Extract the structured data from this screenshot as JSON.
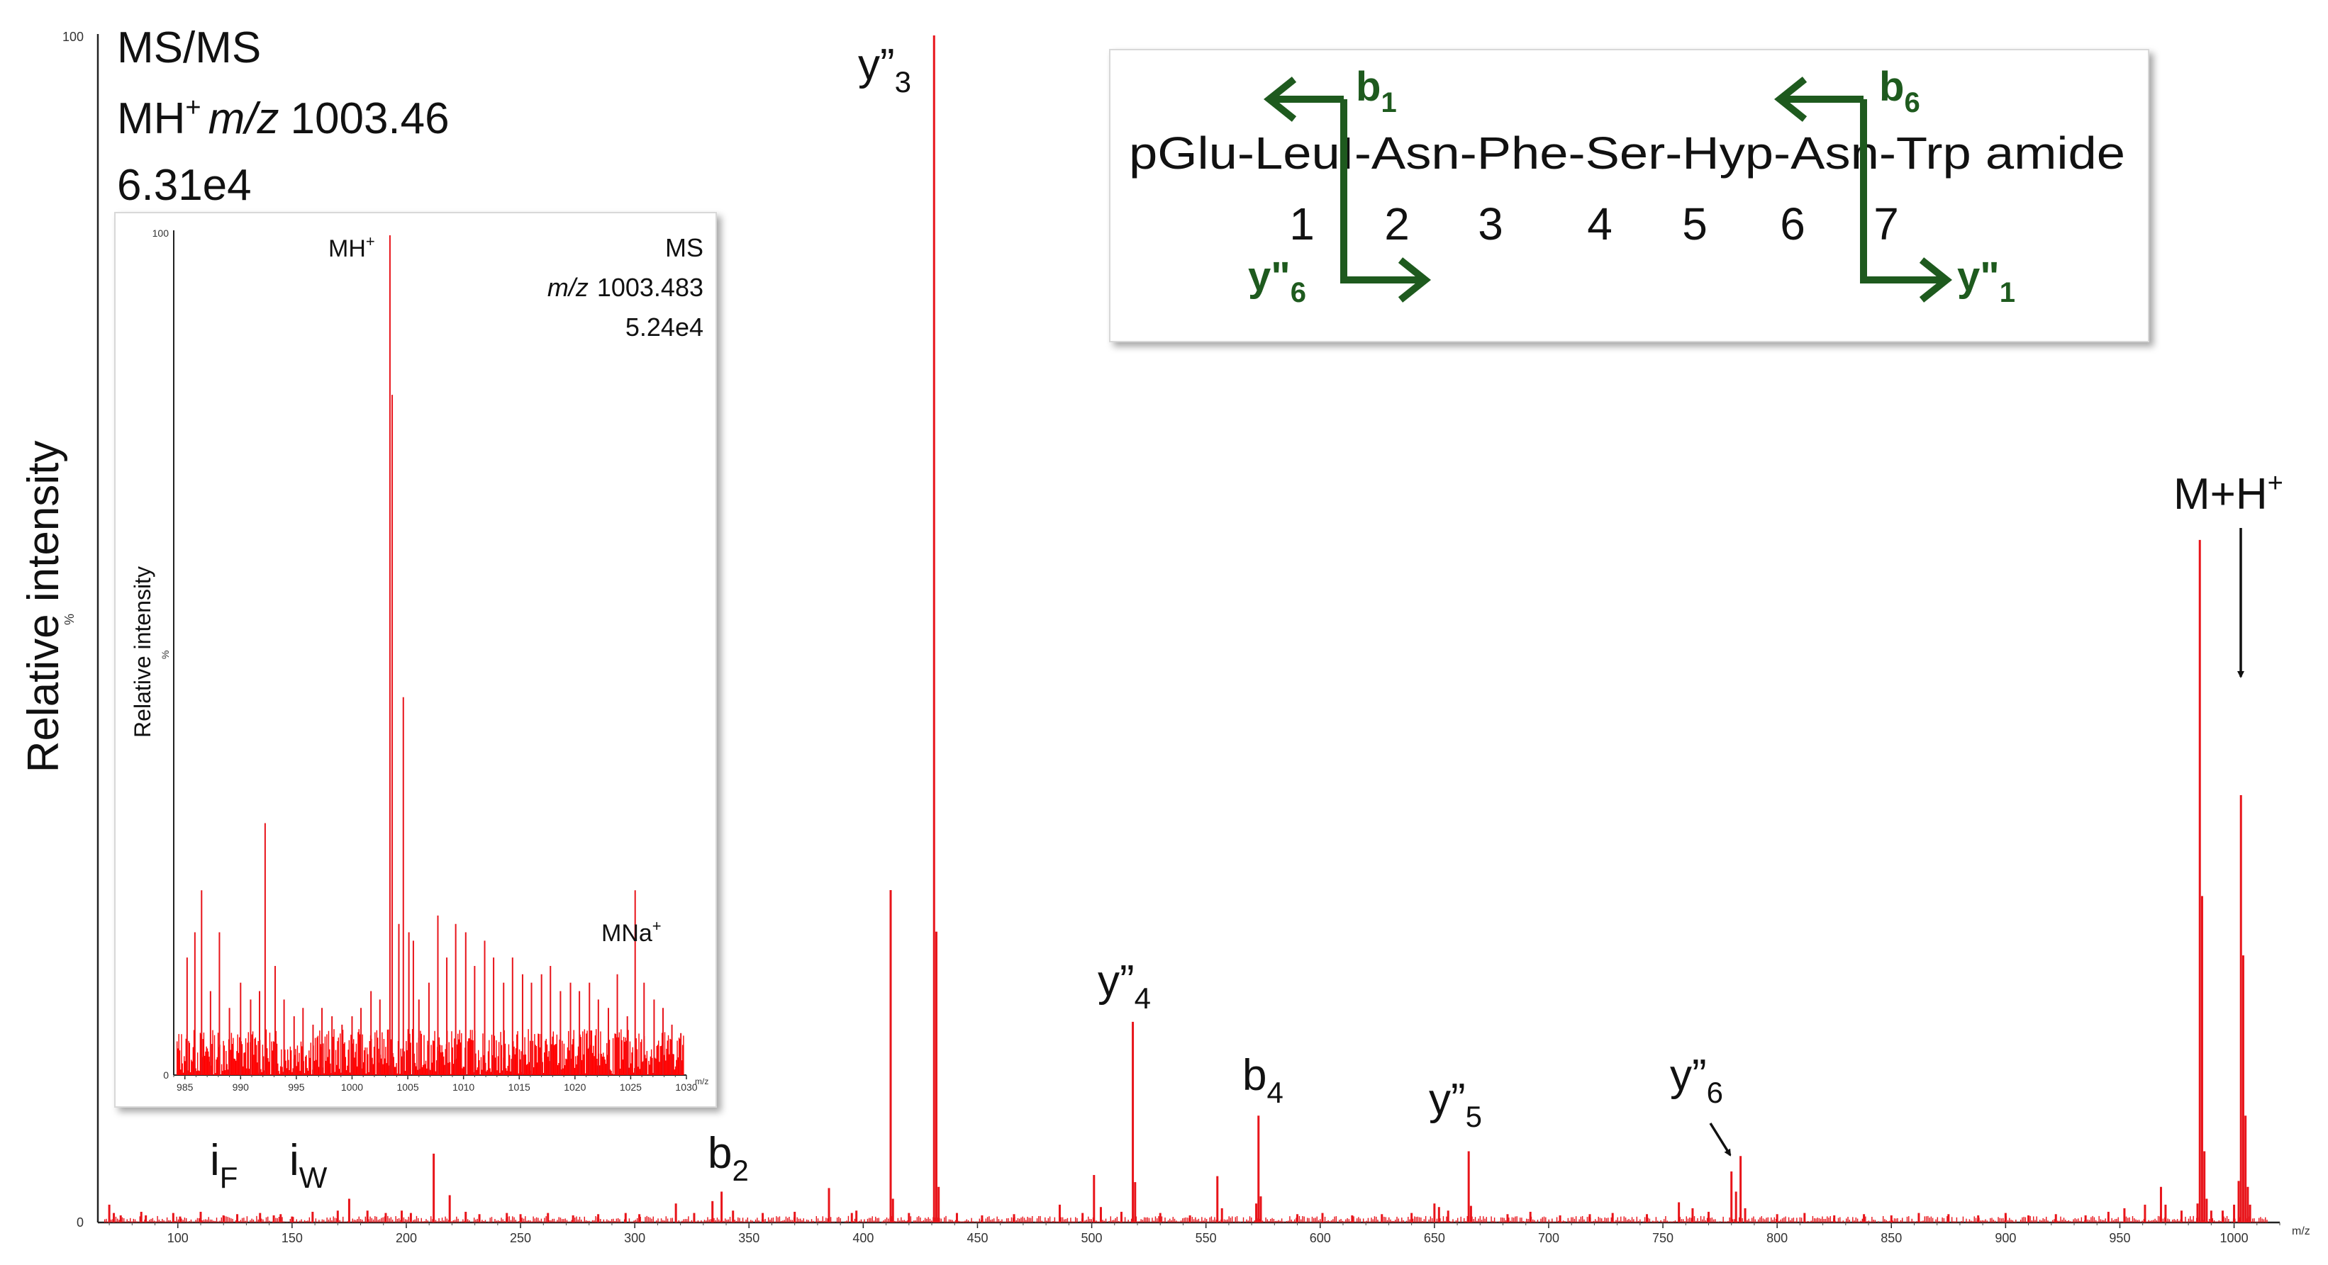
{
  "chart_data": [
    {
      "type": "bar",
      "name": "main-msms-spectrum",
      "ylabel": "Relative intensity",
      "y_axis_marker": "%",
      "y_ticks": [
        "0",
        "100"
      ],
      "x_unit": "m/z",
      "x_ticks": [
        100,
        150,
        200,
        250,
        300,
        350,
        400,
        450,
        500,
        550,
        600,
        650,
        700,
        750,
        800,
        850,
        900,
        950,
        1000
      ],
      "xlim": [
        65,
        1020
      ],
      "ylim": [
        0,
        100
      ],
      "header_lines": [
        {
          "plain": "MS/MS"
        },
        {
          "prefix": "MH",
          "sup": "+",
          "italic": "m/z",
          "value": "1003.46"
        },
        {
          "plain": "6.31e4"
        }
      ],
      "peaks": [
        [
          70,
          1.5
        ],
        [
          72,
          0.8
        ],
        [
          75,
          0.6
        ],
        [
          84,
          0.9
        ],
        [
          86,
          0.6
        ],
        [
          98,
          0.8
        ],
        [
          101,
          0.5
        ],
        [
          110,
          0.9
        ],
        [
          120,
          0.6
        ],
        [
          126,
          0.7
        ],
        [
          136,
          0.8
        ],
        [
          142,
          0.6
        ],
        [
          145,
          0.7
        ],
        [
          150,
          0.5
        ],
        [
          159,
          0.9
        ],
        [
          170,
          1.0
        ],
        [
          175,
          2.0
        ],
        [
          183,
          1.0
        ],
        [
          191,
          0.8
        ],
        [
          198,
          1.0
        ],
        [
          202,
          0.8
        ],
        [
          212,
          5.8
        ],
        [
          219,
          2.3
        ],
        [
          226,
          0.9
        ],
        [
          232,
          0.7
        ],
        [
          244,
          0.8
        ],
        [
          250,
          0.7
        ],
        [
          262,
          0.8
        ],
        [
          273,
          0.6
        ],
        [
          284,
          0.7
        ],
        [
          296,
          0.8
        ],
        [
          302,
          0.7
        ],
        [
          318,
          1.6
        ],
        [
          326,
          0.8
        ],
        [
          334,
          1.8
        ],
        [
          338,
          2.6
        ],
        [
          343,
          1.0
        ],
        [
          356,
          0.8
        ],
        [
          370,
          0.9
        ],
        [
          385,
          2.9
        ],
        [
          395,
          0.8
        ],
        [
          397,
          1.0
        ],
        [
          412,
          28
        ],
        [
          413,
          2.0
        ],
        [
          420,
          0.8
        ],
        [
          431,
          100
        ],
        [
          432,
          24.5
        ],
        [
          433,
          3.0
        ],
        [
          441,
          0.8
        ],
        [
          452,
          0.6
        ],
        [
          466,
          0.7
        ],
        [
          486,
          1.5
        ],
        [
          496,
          0.8
        ],
        [
          501,
          4.0
        ],
        [
          504,
          1.3
        ],
        [
          513,
          0.9
        ],
        [
          518,
          16.9
        ],
        [
          519,
          3.4
        ],
        [
          530,
          0.8
        ],
        [
          543,
          0.6
        ],
        [
          555,
          3.9
        ],
        [
          557,
          1.2
        ],
        [
          572,
          1.6
        ],
        [
          573,
          9.0
        ],
        [
          574,
          2.2
        ],
        [
          590,
          0.7
        ],
        [
          601,
          0.8
        ],
        [
          614,
          0.6
        ],
        [
          627,
          0.7
        ],
        [
          640,
          0.8
        ],
        [
          650,
          1.6
        ],
        [
          652,
          1.3
        ],
        [
          656,
          1.0
        ],
        [
          665,
          6.0
        ],
        [
          666,
          1.4
        ],
        [
          682,
          0.7
        ],
        [
          692,
          0.9
        ],
        [
          705,
          0.6
        ],
        [
          718,
          0.7
        ],
        [
          728,
          0.8
        ],
        [
          743,
          0.7
        ],
        [
          757,
          1.7
        ],
        [
          763,
          1.2
        ],
        [
          770,
          0.9
        ],
        [
          780,
          4.3
        ],
        [
          782,
          2.6
        ],
        [
          784,
          5.6
        ],
        [
          786,
          1.2
        ],
        [
          800,
          0.7
        ],
        [
          812,
          0.8
        ],
        [
          825,
          0.6
        ],
        [
          838,
          0.7
        ],
        [
          850,
          0.6
        ],
        [
          862,
          0.8
        ],
        [
          875,
          0.7
        ],
        [
          888,
          0.6
        ],
        [
          900,
          0.8
        ],
        [
          910,
          0.6
        ],
        [
          922,
          0.7
        ],
        [
          935,
          0.6
        ],
        [
          945,
          0.9
        ],
        [
          952,
          1.2
        ],
        [
          961,
          1.5
        ],
        [
          968,
          3.0
        ],
        [
          970,
          1.5
        ],
        [
          977,
          1.0
        ],
        [
          984,
          1.6
        ],
        [
          985,
          57.5
        ],
        [
          986,
          27.5
        ],
        [
          987,
          6.0
        ],
        [
          988,
          2.0
        ],
        [
          990,
          1.0
        ],
        [
          995,
          1.0
        ],
        [
          1000,
          1.5
        ],
        [
          1002,
          3.5
        ],
        [
          1003,
          36
        ],
        [
          1004,
          22.5
        ],
        [
          1005,
          9.0
        ],
        [
          1006,
          3.0
        ],
        [
          1007,
          1.5
        ]
      ],
      "annotations": [
        {
          "base": "y”",
          "sub": "3"
        },
        {
          "base": "y”",
          "sub": "4"
        },
        {
          "base": "b",
          "sub": "4"
        },
        {
          "base": "y”",
          "sub": "5"
        },
        {
          "base": "y”",
          "sub": "6"
        },
        {
          "base": "b",
          "sub": "2"
        },
        {
          "base": "i",
          "sub": "F"
        },
        {
          "base": "i",
          "sub": "W"
        },
        {
          "base": "M+H",
          "sup": "+"
        }
      ]
    },
    {
      "type": "bar",
      "name": "inset-ms-spectrum",
      "ylabel": "Relative intensity",
      "y_axis_marker": "%",
      "y_ticks": [
        "0",
        "100"
      ],
      "x_unit": "m/z",
      "x_ticks": [
        985,
        990,
        995,
        1000,
        1005,
        1010,
        1015,
        1020,
        1025,
        1030
      ],
      "xlim": [
        984,
        1030
      ],
      "ylim": [
        0,
        100
      ],
      "header_lines": [
        {
          "plain": "MS"
        },
        {
          "italic": "m/z",
          "value": "1003.483"
        },
        {
          "plain": "5.24e4"
        }
      ],
      "peaks": [
        [
          985.2,
          14
        ],
        [
          985.9,
          17
        ],
        [
          986.5,
          22
        ],
        [
          987.3,
          10
        ],
        [
          988.1,
          17
        ],
        [
          989.0,
          8
        ],
        [
          990.0,
          11
        ],
        [
          990.9,
          9
        ],
        [
          991.7,
          10
        ],
        [
          992.2,
          30
        ],
        [
          993.1,
          13
        ],
        [
          993.9,
          9
        ],
        [
          994.8,
          7
        ],
        [
          995.6,
          8
        ],
        [
          996.5,
          6
        ],
        [
          997.3,
          8
        ],
        [
          998.2,
          7
        ],
        [
          999.1,
          6
        ],
        [
          1000.0,
          7
        ],
        [
          1000.8,
          8
        ],
        [
          1001.7,
          10
        ],
        [
          1002.5,
          9
        ],
        [
          1003.4,
          100
        ],
        [
          1003.6,
          81
        ],
        [
          1004.2,
          18
        ],
        [
          1004.6,
          45
        ],
        [
          1005.1,
          17
        ],
        [
          1005.5,
          16
        ],
        [
          1006.0,
          9
        ],
        [
          1006.9,
          11
        ],
        [
          1007.7,
          19
        ],
        [
          1008.5,
          14
        ],
        [
          1009.3,
          18
        ],
        [
          1010.2,
          17
        ],
        [
          1011.0,
          13
        ],
        [
          1011.9,
          16
        ],
        [
          1012.7,
          14
        ],
        [
          1013.6,
          11
        ],
        [
          1014.4,
          14
        ],
        [
          1015.3,
          12
        ],
        [
          1016.1,
          11
        ],
        [
          1017.0,
          12
        ],
        [
          1017.8,
          13
        ],
        [
          1018.7,
          10
        ],
        [
          1019.6,
          11
        ],
        [
          1020.4,
          10
        ],
        [
          1021.3,
          11
        ],
        [
          1022.1,
          9
        ],
        [
          1023.0,
          8
        ],
        [
          1023.8,
          12
        ],
        [
          1024.7,
          7
        ],
        [
          1025.4,
          22
        ],
        [
          1026.2,
          11
        ],
        [
          1027.1,
          9
        ],
        [
          1027.9,
          8
        ],
        [
          1028.7,
          6
        ],
        [
          1029.5,
          5
        ]
      ],
      "annotations": [
        {
          "base": "MH",
          "sup": "+"
        },
        {
          "base": "MNa",
          "sup": "+"
        }
      ]
    }
  ],
  "sequence_panel": {
    "sequence_text": "pGlu-LeuI-Asn-Phe-Ser-Hyp-Asn-Trp amide",
    "position_numbers": [
      "1",
      "2",
      "3",
      "4",
      "5",
      "6",
      "7"
    ],
    "fragments": [
      {
        "base": "b",
        "sub": "1"
      },
      {
        "base": "y\"",
        "sub": "6"
      },
      {
        "base": "b",
        "sub": "6"
      },
      {
        "base": "y\"",
        "sub": "1"
      }
    ],
    "arrow_color": "#1e5a1e"
  },
  "colors": {
    "peak": "#e8141a",
    "inset_peak_dense": "#ff0000",
    "axis": "#222222",
    "text": "#111111"
  }
}
